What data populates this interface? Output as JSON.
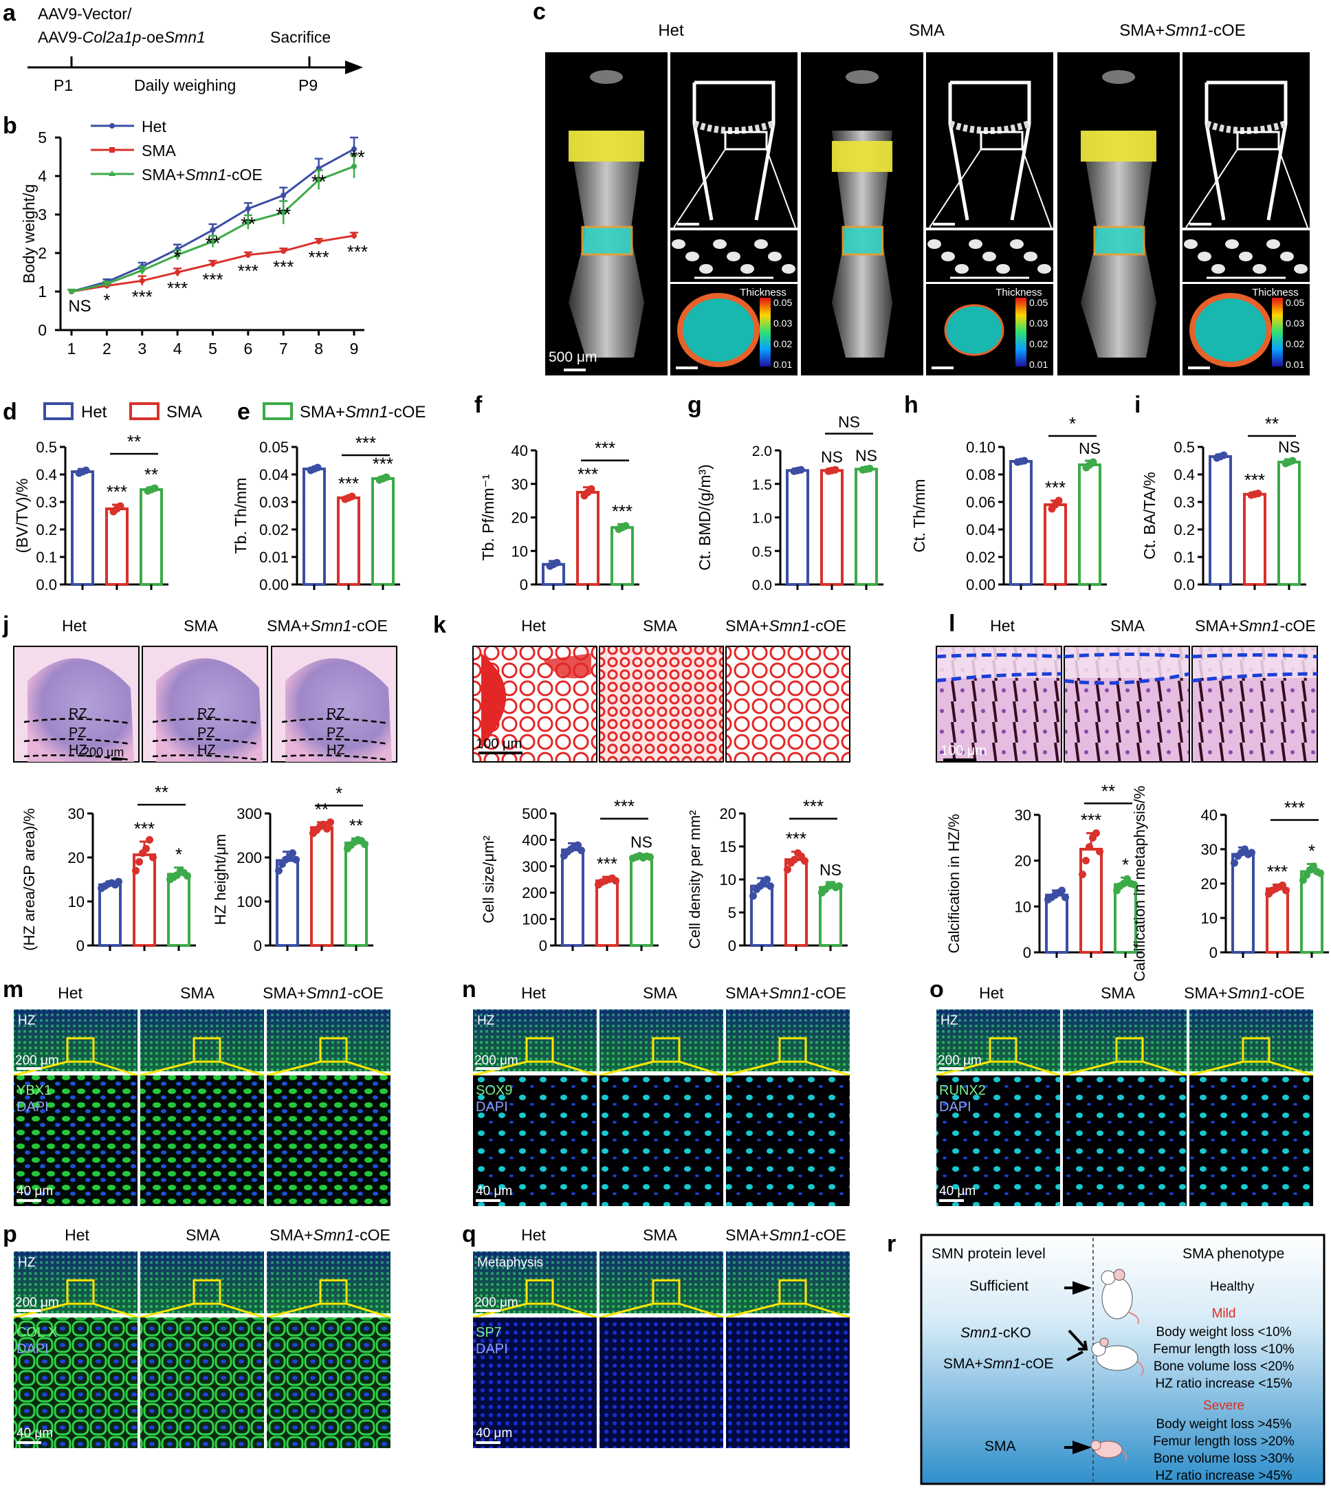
{
  "colors": {
    "het": "#3b4ea3",
    "sma": "#d9312b",
    "coe": "#3daa49",
    "yellow_roi": "#e8e23a",
    "cyan_roi": "#35d2c4",
    "he_pink": "#c070b8",
    "safranin_red": "#e32626",
    "ihc_purple": "#c48bc4",
    "if_green": "#32d24a",
    "if_blue": "#1a2dd0",
    "zone_blue": "#1b3fd6",
    "box_yellow": "#ffe600"
  },
  "groups": {
    "het": "Het",
    "sma": "SMA",
    "coe_prefix": "SMA+",
    "coe_italic": "Smn1",
    "coe_suffix": "-cOE"
  },
  "panels": {
    "a": "a",
    "b": "b",
    "c": "c",
    "d": "d",
    "e": "e",
    "f": "f",
    "g": "g",
    "h": "h",
    "i": "i",
    "j": "j",
    "k": "k",
    "l": "l",
    "m": "m",
    "n": "n",
    "o": "o",
    "p": "p",
    "q": "q",
    "r": "r"
  },
  "timeline": {
    "line1": "AAV9-Vector/",
    "line2_prefix": "AAV9-",
    "line2_italic": "Col2a1p",
    "line2_mid": "-oe",
    "line2_italic2": "Smn1",
    "sacrifice": "Sacrifice",
    "start": "P1",
    "middle": "Daily weighing",
    "end": "P9"
  },
  "micro_ct": {
    "scale_main": "500 μm",
    "legend_title": "Thickness",
    "legend_ticks": [
      "0.05",
      "0.03",
      "0.02",
      "0.01"
    ]
  },
  "sig": {
    "one": "*",
    "two": "**",
    "three": "***",
    "ns": "NS"
  },
  "legend_b": [
    "Het",
    "SMA",
    "SMA+Smn1-cOE"
  ],
  "legend_d": {
    "het": "Het",
    "sma": "SMA"
  },
  "legend_e": {
    "coe": "SMA+Smn1-cOE"
  },
  "chart_data": [
    {
      "id": "b",
      "type": "line",
      "x": [
        1,
        2,
        3,
        4,
        5,
        6,
        7,
        8,
        9
      ],
      "xlabel": "",
      "ylabel": "Body weight/g",
      "ylim": [
        0,
        5
      ],
      "yticks": [
        0,
        1,
        2,
        3,
        4,
        5
      ],
      "series": [
        {
          "name": "Het",
          "values": [
            1.0,
            1.25,
            1.65,
            2.1,
            2.6,
            3.15,
            3.5,
            4.2,
            4.7
          ],
          "err": [
            0.05,
            0.07,
            0.1,
            0.12,
            0.15,
            0.15,
            0.2,
            0.25,
            0.3
          ]
        },
        {
          "name": "SMA",
          "values": [
            1.0,
            1.15,
            1.28,
            1.5,
            1.72,
            1.95,
            2.05,
            2.3,
            2.45
          ],
          "err": [
            0.05,
            0.06,
            0.12,
            0.1,
            0.08,
            0.07,
            0.07,
            0.07,
            0.08
          ]
        },
        {
          "name": "SMA+Smn1-cOE",
          "values": [
            1.0,
            1.2,
            1.55,
            1.95,
            2.3,
            2.8,
            3.05,
            3.9,
            4.25
          ],
          "err": [
            0.05,
            0.06,
            0.1,
            0.12,
            0.15,
            0.18,
            0.3,
            0.25,
            0.3
          ]
        }
      ],
      "labels_top": [
        "",
        "",
        "",
        "*",
        "**",
        "**",
        "**",
        "**",
        "**"
      ],
      "labels_bottom": [
        "NS",
        "*",
        "***",
        "***",
        "***",
        "***",
        "***",
        "***",
        "***"
      ]
    },
    {
      "id": "d",
      "type": "bar",
      "ylabel": "(BV/TV)/%",
      "ylim": [
        0,
        0.5
      ],
      "yticks": [
        "0.0",
        "0.1",
        "0.2",
        "0.3",
        "0.4",
        "0.5"
      ],
      "values": [
        0.41,
        0.275,
        0.345
      ],
      "err": [
        0.01,
        0.015,
        0.008
      ],
      "marks": [
        "",
        "***",
        "**"
      ],
      "brackets": [
        {
          "from": 1,
          "to": 2,
          "label": "**",
          "y": 0.475
        }
      ],
      "points": [
        [
          0.405,
          0.41,
          0.415
        ],
        [
          0.265,
          0.275,
          0.285
        ],
        [
          0.34,
          0.345,
          0.35
        ]
      ]
    },
    {
      "id": "e",
      "type": "bar",
      "ylabel": "Tb. Th/mm",
      "ylim": [
        0,
        0.05
      ],
      "yticks": [
        "0.00",
        "0.01",
        "0.02",
        "0.03",
        "0.04",
        "0.05"
      ],
      "values": [
        0.042,
        0.0315,
        0.0385
      ],
      "err": [
        0.0005,
        0.0005,
        0.0006
      ],
      "marks": [
        "",
        "***",
        "***"
      ],
      "brackets": [
        {
          "from": 1,
          "to": 2,
          "label": "***",
          "y": 0.047
        }
      ],
      "points": [
        [
          0.0415,
          0.042,
          0.0425
        ],
        [
          0.031,
          0.0315,
          0.032
        ],
        [
          0.038,
          0.0385,
          0.039
        ]
      ]
    },
    {
      "id": "f",
      "type": "bar",
      "ylabel": "Tb. Pf/mm⁻¹",
      "ylim": [
        0,
        40
      ],
      "yticks": [
        "0",
        "10",
        "20",
        "30",
        "40"
      ],
      "values": [
        6,
        27.5,
        17
      ],
      "err": [
        1,
        1.5,
        1
      ],
      "marks": [
        "",
        "***",
        "***"
      ],
      "brackets": [
        {
          "from": 1,
          "to": 2,
          "label": "***",
          "y": 37
        }
      ],
      "points": [
        [
          5.5,
          6,
          6.5
        ],
        [
          26.5,
          27.5,
          28.5
        ],
        [
          16.5,
          17,
          17.5
        ]
      ]
    },
    {
      "id": "g",
      "type": "bar",
      "ylabel": "Ct. BMD/(g/m³)",
      "ylim": [
        0,
        2
      ],
      "yticks": [
        "0.0",
        "0.5",
        "1.0",
        "1.5",
        "2.0"
      ],
      "values": [
        1.7,
        1.7,
        1.72
      ],
      "err": [
        0.02,
        0.02,
        0.02
      ],
      "marks": [
        "",
        "NS",
        "NS"
      ],
      "brackets": [
        {
          "from": 1,
          "to": 2,
          "label": "NS",
          "y": 2.25
        }
      ],
      "points": [
        [
          1.69,
          1.7,
          1.71
        ],
        [
          1.69,
          1.7,
          1.71
        ],
        [
          1.71,
          1.72,
          1.73
        ]
      ]
    },
    {
      "id": "h",
      "type": "bar",
      "ylabel": "Ct. Th/mm",
      "ylim": [
        0,
        0.1
      ],
      "yticks": [
        "0.00",
        "0.02",
        "0.04",
        "0.06",
        "0.08",
        "0.10"
      ],
      "values": [
        0.0895,
        0.058,
        0.087
      ],
      "err": [
        0.001,
        0.003,
        0.003
      ],
      "marks": [
        "",
        "***",
        "NS"
      ],
      "brackets": [
        {
          "from": 1,
          "to": 2,
          "label": "*",
          "y": 0.108
        }
      ],
      "points": [
        [
          0.089,
          0.0895,
          0.09
        ],
        [
          0.055,
          0.058,
          0.061
        ],
        [
          0.085,
          0.087,
          0.089
        ]
      ]
    },
    {
      "id": "i",
      "type": "bar",
      "ylabel": "Ct. BA/TA/%",
      "ylim": [
        0,
        0.5
      ],
      "yticks": [
        "0.0",
        "0.1",
        "0.2",
        "0.3",
        "0.4",
        "0.5"
      ],
      "values": [
        0.465,
        0.328,
        0.445
      ],
      "err": [
        0.008,
        0.005,
        0.01
      ],
      "marks": [
        "",
        "***",
        "NS"
      ],
      "brackets": [
        {
          "from": 1,
          "to": 2,
          "label": "**",
          "y": 0.54
        }
      ],
      "points": [
        [
          0.46,
          0.465,
          0.47
        ],
        [
          0.325,
          0.328,
          0.331
        ],
        [
          0.44,
          0.445,
          0.45
        ]
      ]
    },
    {
      "id": "j1",
      "type": "bar",
      "ylabel": "(HZ area/GP area)/%",
      "ylim": [
        0,
        30
      ],
      "yticks": [
        "0",
        "10",
        "20",
        "30"
      ],
      "values": [
        13.8,
        20.6,
        16.2
      ],
      "err": [
        0.6,
        3.0,
        1.5
      ],
      "marks": [
        "",
        "***",
        "*"
      ],
      "brackets": [
        {
          "from": 1,
          "to": 2,
          "label": "**",
          "y": 32
        }
      ],
      "points": [
        [
          13,
          13.5,
          14,
          14.2,
          13.8,
          14.5
        ],
        [
          17,
          19,
          21,
          22,
          24,
          20
        ],
        [
          15,
          15.5,
          16,
          17,
          16.5,
          15.8
        ]
      ]
    },
    {
      "id": "j2",
      "type": "bar",
      "ylabel": "HZ height/μm",
      "ylim": [
        0,
        300
      ],
      "yticks": [
        "0",
        "100",
        "200",
        "300"
      ],
      "values": [
        193,
        268,
        233
      ],
      "err": [
        20,
        12,
        10
      ],
      "marks": [
        "",
        "**",
        "**"
      ],
      "brackets": [
        {
          "from": 1,
          "to": 2,
          "label": "*",
          "y": 318
        }
      ],
      "points": [
        [
          170,
          185,
          195,
          200,
          210,
          195
        ],
        [
          255,
          262,
          270,
          275,
          265,
          280
        ],
        [
          220,
          228,
          235,
          240,
          238,
          230
        ]
      ]
    },
    {
      "id": "k1",
      "type": "bar",
      "ylabel": "Cell size/μm²",
      "ylim": [
        0,
        500
      ],
      "yticks": [
        "0",
        "100",
        "200",
        "300",
        "400",
        "500"
      ],
      "values": [
        362,
        245,
        335
      ],
      "err": [
        25,
        15,
        10
      ],
      "marks": [
        "",
        "***",
        "NS"
      ],
      "brackets": [
        {
          "from": 1,
          "to": 2,
          "label": "***",
          "y": 480
        }
      ],
      "points": [
        [
          340,
          355,
          365,
          375,
          380,
          360
        ],
        [
          230,
          240,
          245,
          250,
          255,
          245
        ],
        [
          330,
          335,
          340,
          332,
          338,
          335
        ]
      ]
    },
    {
      "id": "k2",
      "type": "bar",
      "ylabel": "Cell density per mm²",
      "ylim": [
        0,
        20
      ],
      "yticks": [
        "0",
        "5",
        "10",
        "15",
        "20"
      ],
      "values": [
        9,
        13,
        8.8
      ],
      "err": [
        1.2,
        1.2,
        0.8
      ],
      "marks": [
        "",
        "***",
        "NS"
      ],
      "brackets": [
        {
          "from": 1,
          "to": 2,
          "label": "***",
          "y": 19.2
        }
      ],
      "points": [
        [
          7.5,
          8.5,
          9,
          9.5,
          10,
          9
        ],
        [
          11.5,
          12.5,
          13,
          14,
          13.5,
          12.8
        ],
        [
          8,
          8.5,
          9,
          9.2,
          8.8,
          9
        ]
      ]
    },
    {
      "id": "l1",
      "type": "bar",
      "ylabel": "Calcification in HZ/%",
      "ylim": [
        0,
        30
      ],
      "yticks": [
        "0",
        "10",
        "20",
        "30"
      ],
      "values": [
        12.5,
        22.5,
        14.8
      ],
      "err": [
        1.0,
        3.5,
        1.5
      ],
      "marks": [
        "",
        "***",
        "*"
      ],
      "brackets": [
        {
          "from": 1,
          "to": 2,
          "label": "**",
          "y": 32.5
        }
      ],
      "points": [
        [
          11.5,
          12,
          12.5,
          13,
          13.5,
          12
        ],
        [
          17,
          20,
          23,
          25,
          26,
          22
        ],
        [
          13.5,
          14.5,
          15,
          16,
          15,
          14.8
        ]
      ]
    },
    {
      "id": "l2",
      "type": "bar",
      "ylabel": "Calcification in metaphysis/%",
      "ylim": [
        0,
        40
      ],
      "yticks": [
        "0",
        "10",
        "20",
        "30",
        "40"
      ],
      "values": [
        28.5,
        18.5,
        23.5
      ],
      "err": [
        2.0,
        1.2,
        2.2
      ],
      "marks": [
        "",
        "***",
        "*"
      ],
      "brackets": [
        {
          "from": 1,
          "to": 2,
          "label": "***",
          "y": 38.5
        }
      ],
      "points": [
        [
          26,
          28,
          29,
          30,
          28.5,
          29
        ],
        [
          17,
          18,
          18.5,
          19,
          19.5,
          18
        ],
        [
          21,
          22.5,
          24,
          25,
          23.5,
          23
        ]
      ]
    }
  ],
  "histo": {
    "rz": "RZ",
    "pz": "PZ",
    "hz": "HZ",
    "scale_200": "200 μm",
    "scale_100": "100 μm",
    "scale_40": "40 μm",
    "metaphysis": "Metaphysis"
  },
  "if_markers": {
    "m": "YBX1",
    "n": "SOX9",
    "o": "RUNX2",
    "p": "COL X",
    "q": "SP7",
    "dapi": "DAPI"
  },
  "schematic": {
    "left_header": "SMN protein level",
    "right_header": "SMA phenotype",
    "sufficient": "Sufficient",
    "healthy": "Healthy",
    "cko_italic": "Smn1",
    "cko_suffix": "-cKO",
    "coe_prefix": "SMA+",
    "coe_italic": "Smn1",
    "coe_suffix": "-cOE",
    "mild": "Mild",
    "mild_lines": [
      "Body weight loss <10%",
      "Femur length loss <10%",
      "Bone volume loss <20%",
      "HZ ratio increase <15%"
    ],
    "severe": "Severe",
    "severe_lines": [
      "Body weight loss >45%",
      "Femur length loss >20%",
      "Bone volume loss >30%",
      "HZ ratio increase >45%"
    ],
    "sma": "SMA"
  }
}
